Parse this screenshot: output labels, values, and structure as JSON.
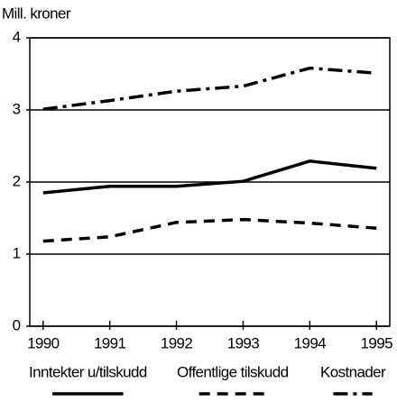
{
  "chart_data": {
    "type": "line",
    "y_label": "Mill. kroner",
    "x": [
      1990,
      1991,
      1992,
      1993,
      1994,
      1995
    ],
    "xlim": [
      1989.8,
      1995.2
    ],
    "xticks": [
      1990,
      1991,
      1992,
      1993,
      1994,
      1995
    ],
    "ylim": [
      0,
      4
    ],
    "yticks": [
      0,
      1,
      2,
      3,
      4
    ],
    "grid": true,
    "series": [
      {
        "name": "Inntekter u/tilskudd",
        "color": "#000000",
        "style": "solid",
        "values": [
          1.85,
          1.94,
          1.94,
          2.01,
          2.29,
          2.19
        ]
      },
      {
        "name": "Offentlige tilskudd",
        "color": "#000000",
        "style": "dashed",
        "values": [
          1.18,
          1.24,
          1.44,
          1.48,
          1.43,
          1.36
        ]
      },
      {
        "name": "Kostnader",
        "color": "#000000",
        "style": "dashdot",
        "values": [
          3.01,
          3.13,
          3.26,
          3.33,
          3.58,
          3.51
        ]
      }
    ]
  }
}
